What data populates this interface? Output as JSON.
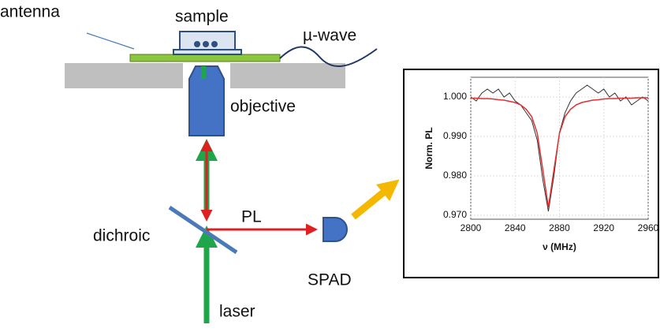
{
  "labels": {
    "antenna": "antenna",
    "sample": "sample",
    "microwave": "µ-wave",
    "objective": "objective",
    "dichroic": "dichroic",
    "pl": "PL",
    "spad": "SPAD",
    "laser": "laser"
  },
  "chart_data": {
    "type": "line",
    "xlabel": "ν (MHz)",
    "ylabel": "Norm. PL",
    "x": [
      2800,
      2805,
      2810,
      2815,
      2820,
      2825,
      2830,
      2835,
      2840,
      2845,
      2850,
      2855,
      2860,
      2865,
      2870,
      2875,
      2880,
      2885,
      2890,
      2895,
      2900,
      2905,
      2910,
      2915,
      2920,
      2925,
      2930,
      2935,
      2940,
      2945,
      2950,
      2955,
      2960
    ],
    "series": [
      {
        "color": "#333333",
        "values": [
          1.0,
          0.999,
          1.001,
          1.002,
          1.001,
          1.002,
          1.0,
          1.001,
          0.999,
          0.998,
          0.996,
          0.994,
          0.989,
          0.979,
          0.971,
          0.98,
          0.991,
          0.996,
          0.999,
          1.001,
          1.002,
          1.003,
          1.002,
          1.001,
          1.002,
          1.0,
          1.001,
          0.999,
          1.0,
          0.998,
          0.999,
          1.0,
          0.999
        ]
      },
      {
        "color": "#e03030",
        "values": [
          0.9997,
          0.9997,
          0.9996,
          0.9996,
          0.9995,
          0.9993,
          0.9992,
          0.9989,
          0.9986,
          0.998,
          0.9969,
          0.995,
          0.9908,
          0.9815,
          0.972,
          0.9815,
          0.9908,
          0.995,
          0.9969,
          0.998,
          0.9986,
          0.9989,
          0.9992,
          0.9993,
          0.9995,
          0.9996,
          0.9996,
          0.9997,
          0.9997,
          0.9997,
          0.9998,
          0.9998,
          0.9998
        ]
      }
    ],
    "xlim": [
      2800,
      2960
    ],
    "xticks": [
      2800,
      2840,
      2880,
      2920,
      2960
    ],
    "ylim": [
      0.969,
      1.005
    ],
    "yticks": [
      {
        "value": 0.97,
        "label": "0.970"
      },
      {
        "value": 0.98,
        "label": "0.980"
      },
      {
        "value": 0.99,
        "label": "0.990"
      },
      {
        "value": 1.0,
        "label": "1.000"
      }
    ],
    "grid": true
  }
}
